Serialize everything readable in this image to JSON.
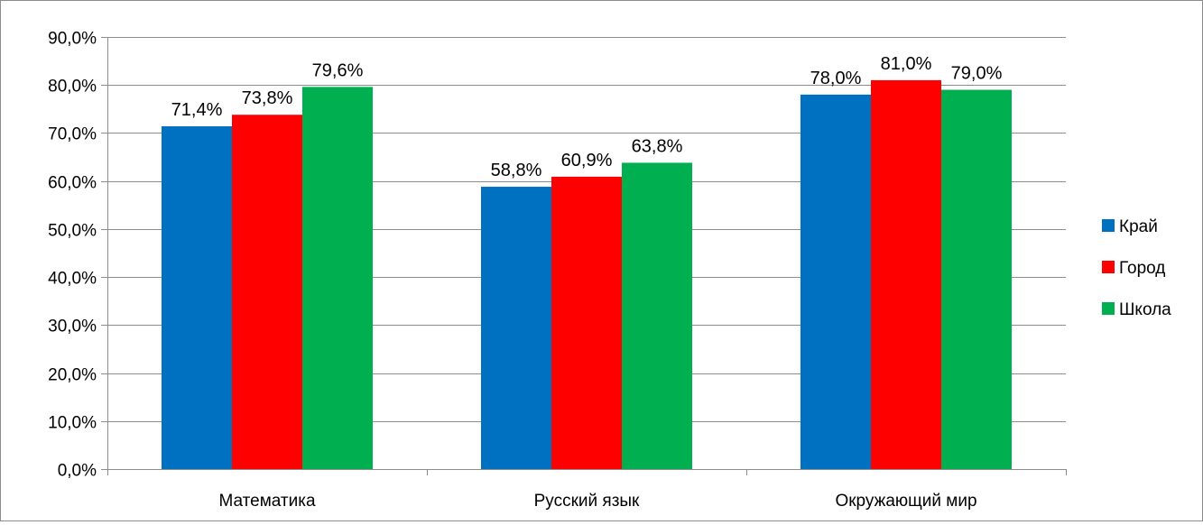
{
  "chart_data": {
    "type": "bar",
    "title": "",
    "xlabel": "",
    "ylabel": "",
    "categories": [
      "Математика",
      "Русский язык",
      "Окружающий мир"
    ],
    "series": [
      {
        "name": "Край",
        "color": "#0070C0",
        "values": [
          71.4,
          58.8,
          78.0
        ],
        "labels": [
          "71,4%",
          "58,8%",
          "78,0%"
        ]
      },
      {
        "name": "Город",
        "color": "#FF0000",
        "values": [
          73.8,
          60.9,
          81.0
        ],
        "labels": [
          "73,8%",
          "60,9%",
          "81,0%"
        ]
      },
      {
        "name": "Школа",
        "color": "#00B050",
        "values": [
          79.6,
          63.8,
          79.0
        ],
        "labels": [
          "79,6%",
          "63,8%",
          "79,0%"
        ]
      }
    ],
    "ylim": [
      0,
      90
    ],
    "yticks": [
      0,
      10,
      20,
      30,
      40,
      50,
      60,
      70,
      80,
      90
    ],
    "ytick_labels": [
      "0,0%",
      "10,0%",
      "20,0%",
      "30,0%",
      "40,0%",
      "50,0%",
      "60,0%",
      "70,0%",
      "80,0%",
      "90,0%"
    ],
    "grid": true,
    "legend_position": "right",
    "gridline_color": "#8c8c8c"
  }
}
